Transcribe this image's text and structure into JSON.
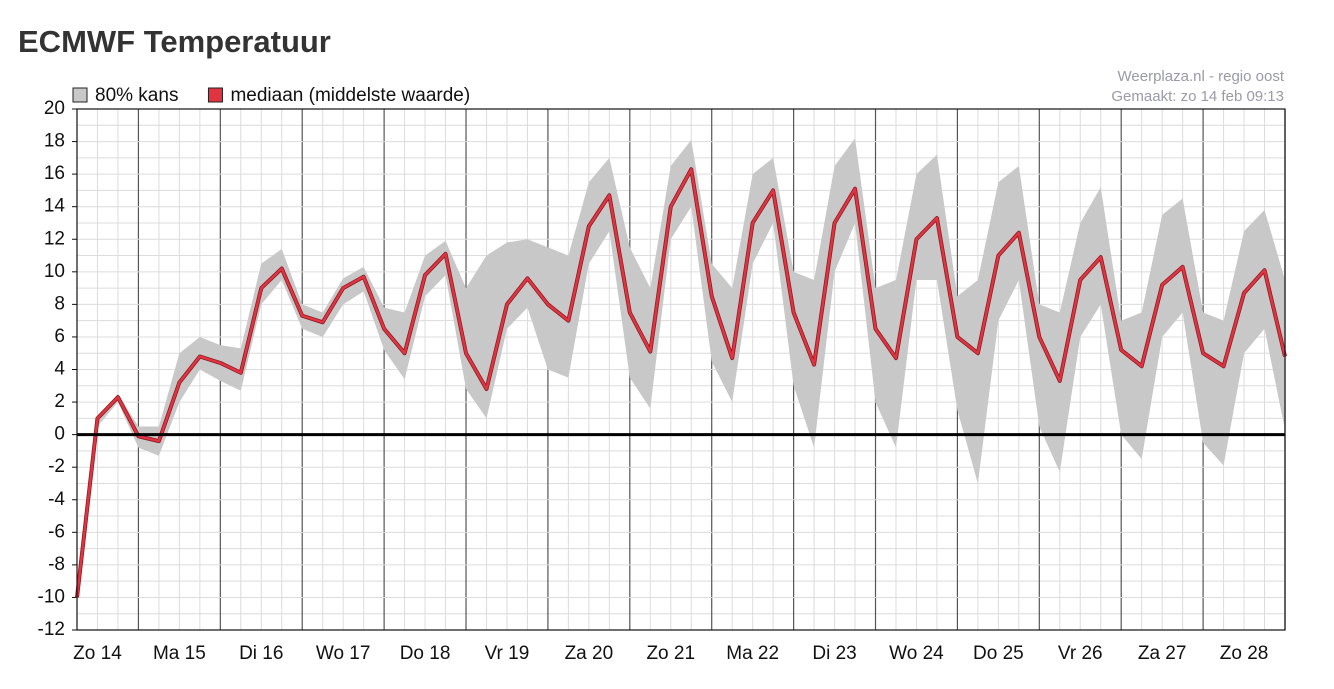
{
  "chart_data": {
    "type": "band-line",
    "title": "ECMWF Temperatuur",
    "credits": [
      "Weerplaza.nl - regio oost",
      "Gemaakt: zo 14 feb 09:13"
    ],
    "x": [
      0.25,
      0.5,
      0.75,
      1,
      1.25,
      1.5,
      1.75,
      2,
      2.25,
      2.5,
      2.75,
      3,
      3.25,
      3.5,
      3.75,
      4,
      4.25,
      4.5,
      4.75,
      5,
      5.25,
      5.5,
      5.75,
      6,
      6.25,
      6.5,
      6.75,
      7,
      7.25,
      7.5,
      7.75,
      8,
      8.25,
      8.5,
      8.75,
      9,
      9.25,
      9.5,
      9.75,
      10,
      10.25,
      10.5,
      10.75,
      11,
      11.25,
      11.5,
      11.75,
      12,
      12.25,
      12.5,
      12.75,
      13,
      13.25,
      13.5,
      13.75,
      14,
      14.25,
      14.5,
      14.75,
      15
    ],
    "series": [
      {
        "name": "80% kans",
        "color": "#c8c8c8",
        "kind": "band",
        "low": [
          -10,
          0.5,
          2.0,
          -0.8,
          -1.3,
          2.0,
          4.0,
          3.3,
          2.7,
          8.0,
          9.5,
          6.5,
          6.0,
          8.0,
          8.8,
          5.2,
          3.4,
          8.5,
          9.8,
          2.8,
          1.0,
          6.5,
          7.8,
          4.0,
          3.5,
          10.5,
          12.5,
          3.5,
          1.6,
          12.0,
          14.0,
          4.5,
          2.0,
          10.5,
          13.0,
          3.0,
          -0.8,
          10.0,
          13.0,
          2.0,
          -0.8,
          9.5,
          9.5,
          1.5,
          -3.0,
          7.0,
          9.5,
          0.5,
          -2.3,
          6.0,
          8.0,
          0.0,
          -1.5,
          6.0,
          7.5,
          -0.5,
          -1.9,
          5.0,
          6.5,
          0.3
        ],
        "high": [
          -10,
          1.0,
          2.5,
          0.5,
          0.5,
          5.0,
          6.0,
          5.5,
          5.3,
          10.5,
          11.4,
          8.0,
          7.5,
          9.6,
          10.3,
          7.8,
          7.5,
          11.0,
          11.9,
          9.0,
          11.0,
          11.8,
          12.0,
          11.5,
          11.0,
          15.5,
          17.0,
          11.5,
          9.0,
          16.5,
          18.1,
          10.5,
          9.0,
          16.0,
          17.0,
          10.0,
          9.5,
          16.5,
          18.2,
          9.0,
          9.5,
          16.0,
          17.2,
          8.5,
          9.5,
          15.5,
          16.5,
          8.0,
          7.5,
          13.0,
          15.2,
          7.0,
          7.5,
          13.5,
          14.5,
          7.5,
          7.0,
          12.5,
          13.8,
          9.5
        ]
      },
      {
        "name": "mediaan (middelste waarde)",
        "color": "#e23340",
        "kind": "line",
        "values": [
          -10,
          1.0,
          2.3,
          -0.1,
          -0.4,
          3.2,
          4.8,
          4.4,
          3.8,
          9.0,
          10.2,
          7.3,
          6.9,
          9.0,
          9.7,
          6.5,
          5.0,
          9.8,
          11.1,
          5.0,
          2.8,
          8.0,
          9.6,
          8.0,
          7.0,
          12.8,
          14.7,
          7.5,
          5.1,
          14.0,
          16.3,
          8.5,
          4.7,
          13.0,
          15.0,
          7.5,
          4.3,
          13.0,
          15.1,
          6.5,
          4.7,
          12.0,
          13.3,
          6.0,
          5.0,
          11.0,
          12.4,
          6.0,
          3.3,
          9.5,
          10.9,
          5.2,
          4.2,
          9.2,
          10.3,
          5.0,
          4.2,
          8.7,
          10.1,
          4.8
        ]
      }
    ],
    "xlim": [
      0.25,
      15
    ],
    "xticks": [
      {
        "value": 0.5,
        "label": "Zo 14"
      },
      {
        "value": 1.5,
        "label": "Ma 15"
      },
      {
        "value": 2.5,
        "label": "Di 16"
      },
      {
        "value": 3.5,
        "label": "Wo 17"
      },
      {
        "value": 4.5,
        "label": "Do 18"
      },
      {
        "value": 5.5,
        "label": "Vr 19"
      },
      {
        "value": 6.5,
        "label": "Za 20"
      },
      {
        "value": 7.5,
        "label": "Zo 21"
      },
      {
        "value": 8.5,
        "label": "Ma 22"
      },
      {
        "value": 9.5,
        "label": "Di 23"
      },
      {
        "value": 10.5,
        "label": "Wo 24"
      },
      {
        "value": 11.5,
        "label": "Do 25"
      },
      {
        "value": 12.5,
        "label": "Vr 26"
      },
      {
        "value": 13.5,
        "label": "Za 27"
      },
      {
        "value": 14.5,
        "label": "Zo 28"
      }
    ],
    "ylim": [
      -12,
      20
    ],
    "yticks": [
      -12,
      -10,
      -8,
      -6,
      -4,
      -2,
      0,
      2,
      4,
      6,
      8,
      10,
      12,
      14,
      16,
      18,
      20
    ],
    "grid": true,
    "zero_line": true
  }
}
